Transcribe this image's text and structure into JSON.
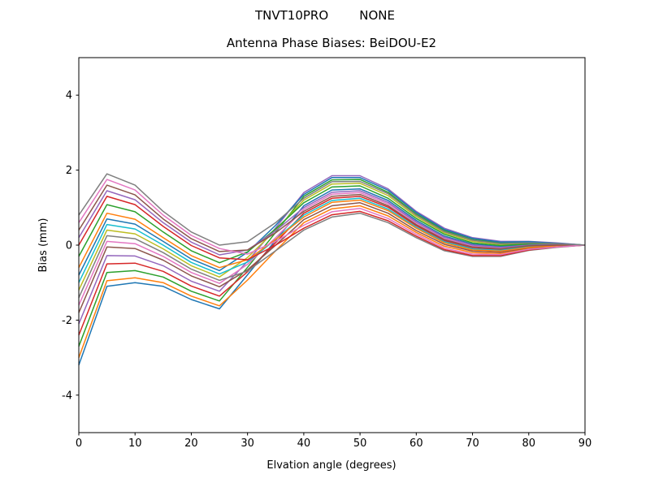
{
  "figure": {
    "suptitle": "TNVT10PRO        NONE",
    "title": "Antenna Phase Biases: BeiDOU-E2",
    "xlabel": "Elvation angle (degrees)",
    "ylabel": "Bias (mm)"
  },
  "chart_data": {
    "type": "line",
    "suptitle": "TNVT10PRO        NONE",
    "title": "Antenna Phase Biases: BeiDOU-E2",
    "xlabel": "Elvation angle (degrees)",
    "ylabel": "Bias (mm)",
    "xlim": [
      0,
      90
    ],
    "ylim": [
      -5,
      5
    ],
    "x_ticks": [
      0,
      10,
      20,
      30,
      40,
      50,
      60,
      70,
      80,
      90
    ],
    "y_ticks": [
      -4,
      -2,
      0,
      2,
      4
    ],
    "grid": false,
    "legend": "none",
    "x": [
      0,
      5,
      10,
      15,
      20,
      25,
      30,
      35,
      40,
      45,
      50,
      55,
      60,
      65,
      70,
      75,
      80,
      85,
      90
    ],
    "series": [
      {
        "color": "#1f77b4",
        "values": [
          -3.2,
          -1.1,
          -1.0,
          -1.1,
          -1.45,
          -1.7,
          -0.79,
          0.13,
          1.05,
          1.47,
          1.5,
          1.19,
          0.66,
          0.24,
          0.03,
          -0.04,
          0.02,
          0.02,
          0.0
        ]
      },
      {
        "color": "#ff7f0e",
        "values": [
          -3.0,
          -0.95,
          -0.87,
          -1.0,
          -1.36,
          -1.62,
          -0.93,
          -0.15,
          0.6,
          0.97,
          1.05,
          0.78,
          0.34,
          -0.03,
          -0.2,
          -0.22,
          -0.09,
          -0.04,
          0.0
        ]
      },
      {
        "color": "#2ca02c",
        "values": [
          -2.7,
          -0.73,
          -0.68,
          -0.85,
          -1.23,
          -1.49,
          -0.59,
          0.34,
          1.3,
          1.74,
          1.75,
          1.41,
          0.83,
          0.39,
          0.15,
          0.06,
          0.08,
          0.05,
          0.0
        ]
      },
      {
        "color": "#d62728",
        "values": [
          -2.4,
          -0.5,
          -0.48,
          -0.7,
          -1.09,
          -1.36,
          -0.71,
          0.07,
          0.85,
          1.25,
          1.3,
          1.01,
          0.52,
          0.12,
          -0.08,
          -0.12,
          -0.03,
          -0.01,
          0.0
        ]
      },
      {
        "color": "#9467bd",
        "values": [
          -2.1,
          -0.28,
          -0.29,
          -0.55,
          -0.96,
          -1.23,
          -0.43,
          0.46,
          1.4,
          1.85,
          1.85,
          1.5,
          0.9,
          0.45,
          0.2,
          0.1,
          0.1,
          0.06,
          0.0
        ]
      },
      {
        "color": "#8c564b",
        "values": [
          -1.8,
          -0.05,
          -0.09,
          -0.4,
          -0.82,
          -1.11,
          -0.66,
          0.0,
          0.68,
          1.05,
          1.13,
          0.85,
          0.39,
          0.02,
          -0.16,
          -0.19,
          -0.07,
          -0.03,
          0.0
        ]
      },
      {
        "color": "#e377c2",
        "values": [
          -1.6,
          0.1,
          0.04,
          -0.3,
          -0.73,
          -1.02,
          -0.51,
          0.2,
          0.95,
          1.36,
          1.4,
          1.1,
          0.59,
          0.18,
          -0.03,
          -0.08,
          -0.01,
          0.01,
          0.0
        ]
      },
      {
        "color": "#7f7f7f",
        "values": [
          -1.4,
          0.25,
          0.17,
          -0.2,
          -0.64,
          -0.94,
          -0.69,
          -0.15,
          0.4,
          0.75,
          0.85,
          0.6,
          0.2,
          -0.15,
          -0.3,
          -0.3,
          -0.14,
          -0.06,
          0.0
        ]
      },
      {
        "color": "#bcbd22",
        "values": [
          -1.2,
          0.4,
          0.3,
          -0.1,
          -0.55,
          -0.85,
          -0.33,
          0.4,
          1.2,
          1.63,
          1.65,
          1.32,
          0.76,
          0.33,
          0.1,
          0.02,
          0.05,
          0.04,
          0.0
        ]
      },
      {
        "color": "#17becf",
        "values": [
          -1.0,
          0.55,
          0.43,
          0.0,
          -0.46,
          -0.77,
          -0.45,
          0.15,
          0.8,
          1.19,
          1.25,
          0.96,
          0.48,
          0.09,
          -0.1,
          -0.14,
          -0.04,
          -0.01,
          0.0
        ]
      },
      {
        "color": "#1f77b4",
        "values": [
          -0.8,
          0.7,
          0.56,
          0.1,
          -0.37,
          -0.68,
          -0.19,
          0.53,
          1.35,
          1.8,
          1.8,
          1.46,
          0.87,
          0.42,
          0.18,
          0.08,
          0.09,
          0.05,
          0.0
        ]
      },
      {
        "color": "#ff7f0e",
        "values": [
          -0.6,
          0.85,
          0.69,
          0.2,
          -0.28,
          -0.6,
          -0.39,
          0.15,
          0.75,
          1.14,
          1.2,
          0.92,
          0.45,
          0.06,
          -0.13,
          -0.16,
          -0.06,
          -0.02,
          0.0
        ]
      },
      {
        "color": "#2ca02c",
        "values": [
          -0.3,
          1.08,
          0.89,
          0.35,
          -0.15,
          -0.47,
          -0.18,
          0.43,
          1.13,
          1.55,
          1.58,
          1.25,
          0.71,
          0.29,
          0.06,
          -0.01,
          0.03,
          0.03,
          0.0
        ]
      },
      {
        "color": "#d62728",
        "values": [
          0.0,
          1.3,
          1.08,
          0.5,
          -0.01,
          -0.34,
          -0.39,
          0.0,
          0.45,
          0.81,
          0.9,
          0.65,
          0.24,
          -0.12,
          -0.28,
          -0.28,
          -0.13,
          -0.05,
          0.0
        ]
      },
      {
        "color": "#9467bd",
        "values": [
          0.2,
          1.45,
          1.21,
          0.6,
          0.08,
          -0.26,
          -0.13,
          0.38,
          1.0,
          1.41,
          1.45,
          1.14,
          0.62,
          0.21,
          0.0,
          -0.06,
          0.0,
          0.01,
          0.0
        ]
      },
      {
        "color": "#8c564b",
        "values": [
          0.4,
          1.6,
          1.34,
          0.7,
          0.17,
          -0.17,
          -0.13,
          0.33,
          0.9,
          1.3,
          1.35,
          1.05,
          0.55,
          0.15,
          -0.05,
          -0.1,
          -0.02,
          0.0,
          0.0
        ]
      },
      {
        "color": "#e377c2",
        "values": [
          0.6,
          1.75,
          1.47,
          0.8,
          0.26,
          -0.09,
          -0.24,
          0.1,
          0.53,
          0.89,
          0.98,
          0.71,
          0.29,
          -0.08,
          -0.24,
          -0.25,
          -0.11,
          -0.05,
          0.0
        ]
      },
      {
        "color": "#7f7f7f",
        "values": [
          0.8,
          1.9,
          1.6,
          0.9,
          0.35,
          0.0,
          0.09,
          0.6,
          1.25,
          1.69,
          1.7,
          1.37,
          0.8,
          0.36,
          0.13,
          0.04,
          0.06,
          0.04,
          0.0
        ]
      }
    ]
  }
}
